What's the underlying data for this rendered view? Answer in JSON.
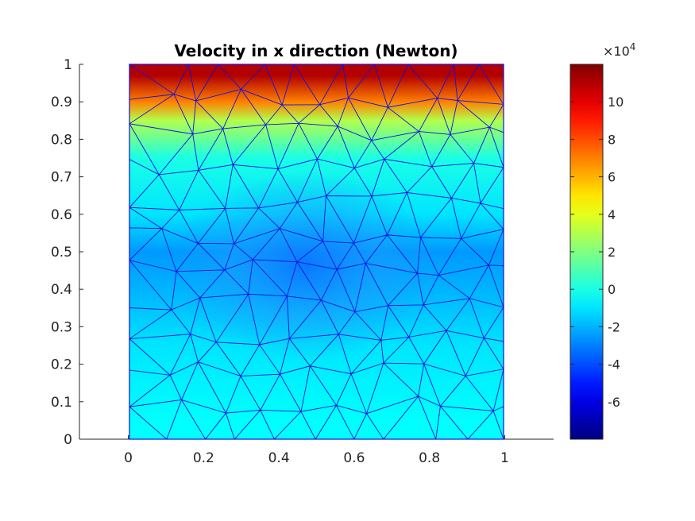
{
  "chart_data": {
    "type": "heatmap",
    "title": "Velocity in x direction (Newton)",
    "xlabel": "",
    "ylabel": "",
    "xlim": [
      -0.13,
      1.13
    ],
    "ylim": [
      0,
      1
    ],
    "x_ticks": [
      "0",
      "0.2",
      "0.4",
      "0.6",
      "0.8",
      "1"
    ],
    "y_ticks": [
      "0",
      "0.1",
      "0.2",
      "0.3",
      "0.4",
      "0.5",
      "0.6",
      "0.7",
      "0.8",
      "0.9",
      "1"
    ],
    "mesh": "triangular",
    "mesh_color": "#1010e0",
    "colormap": "jet",
    "colorbar": {
      "limits": [
        -8,
        12
      ],
      "ticks": [
        "10",
        "8",
        "6",
        "4",
        "2",
        "0",
        "-2",
        "-4",
        "-6"
      ],
      "multiplier_base": "×10",
      "multiplier_exponent": "4"
    },
    "field_samples": [
      {
        "y": 0.97,
        "value": 11
      },
      {
        "y": 0.9,
        "value": 7
      },
      {
        "y": 0.85,
        "value": 3
      },
      {
        "y": 0.75,
        "value": 0
      },
      {
        "y": 0.6,
        "value": -1
      },
      {
        "y": 0.5,
        "value": -2.5
      },
      {
        "y": 0.4,
        "value": -2
      },
      {
        "y": 0.25,
        "value": -1
      },
      {
        "y": 0.05,
        "value": -0.5
      }
    ]
  }
}
